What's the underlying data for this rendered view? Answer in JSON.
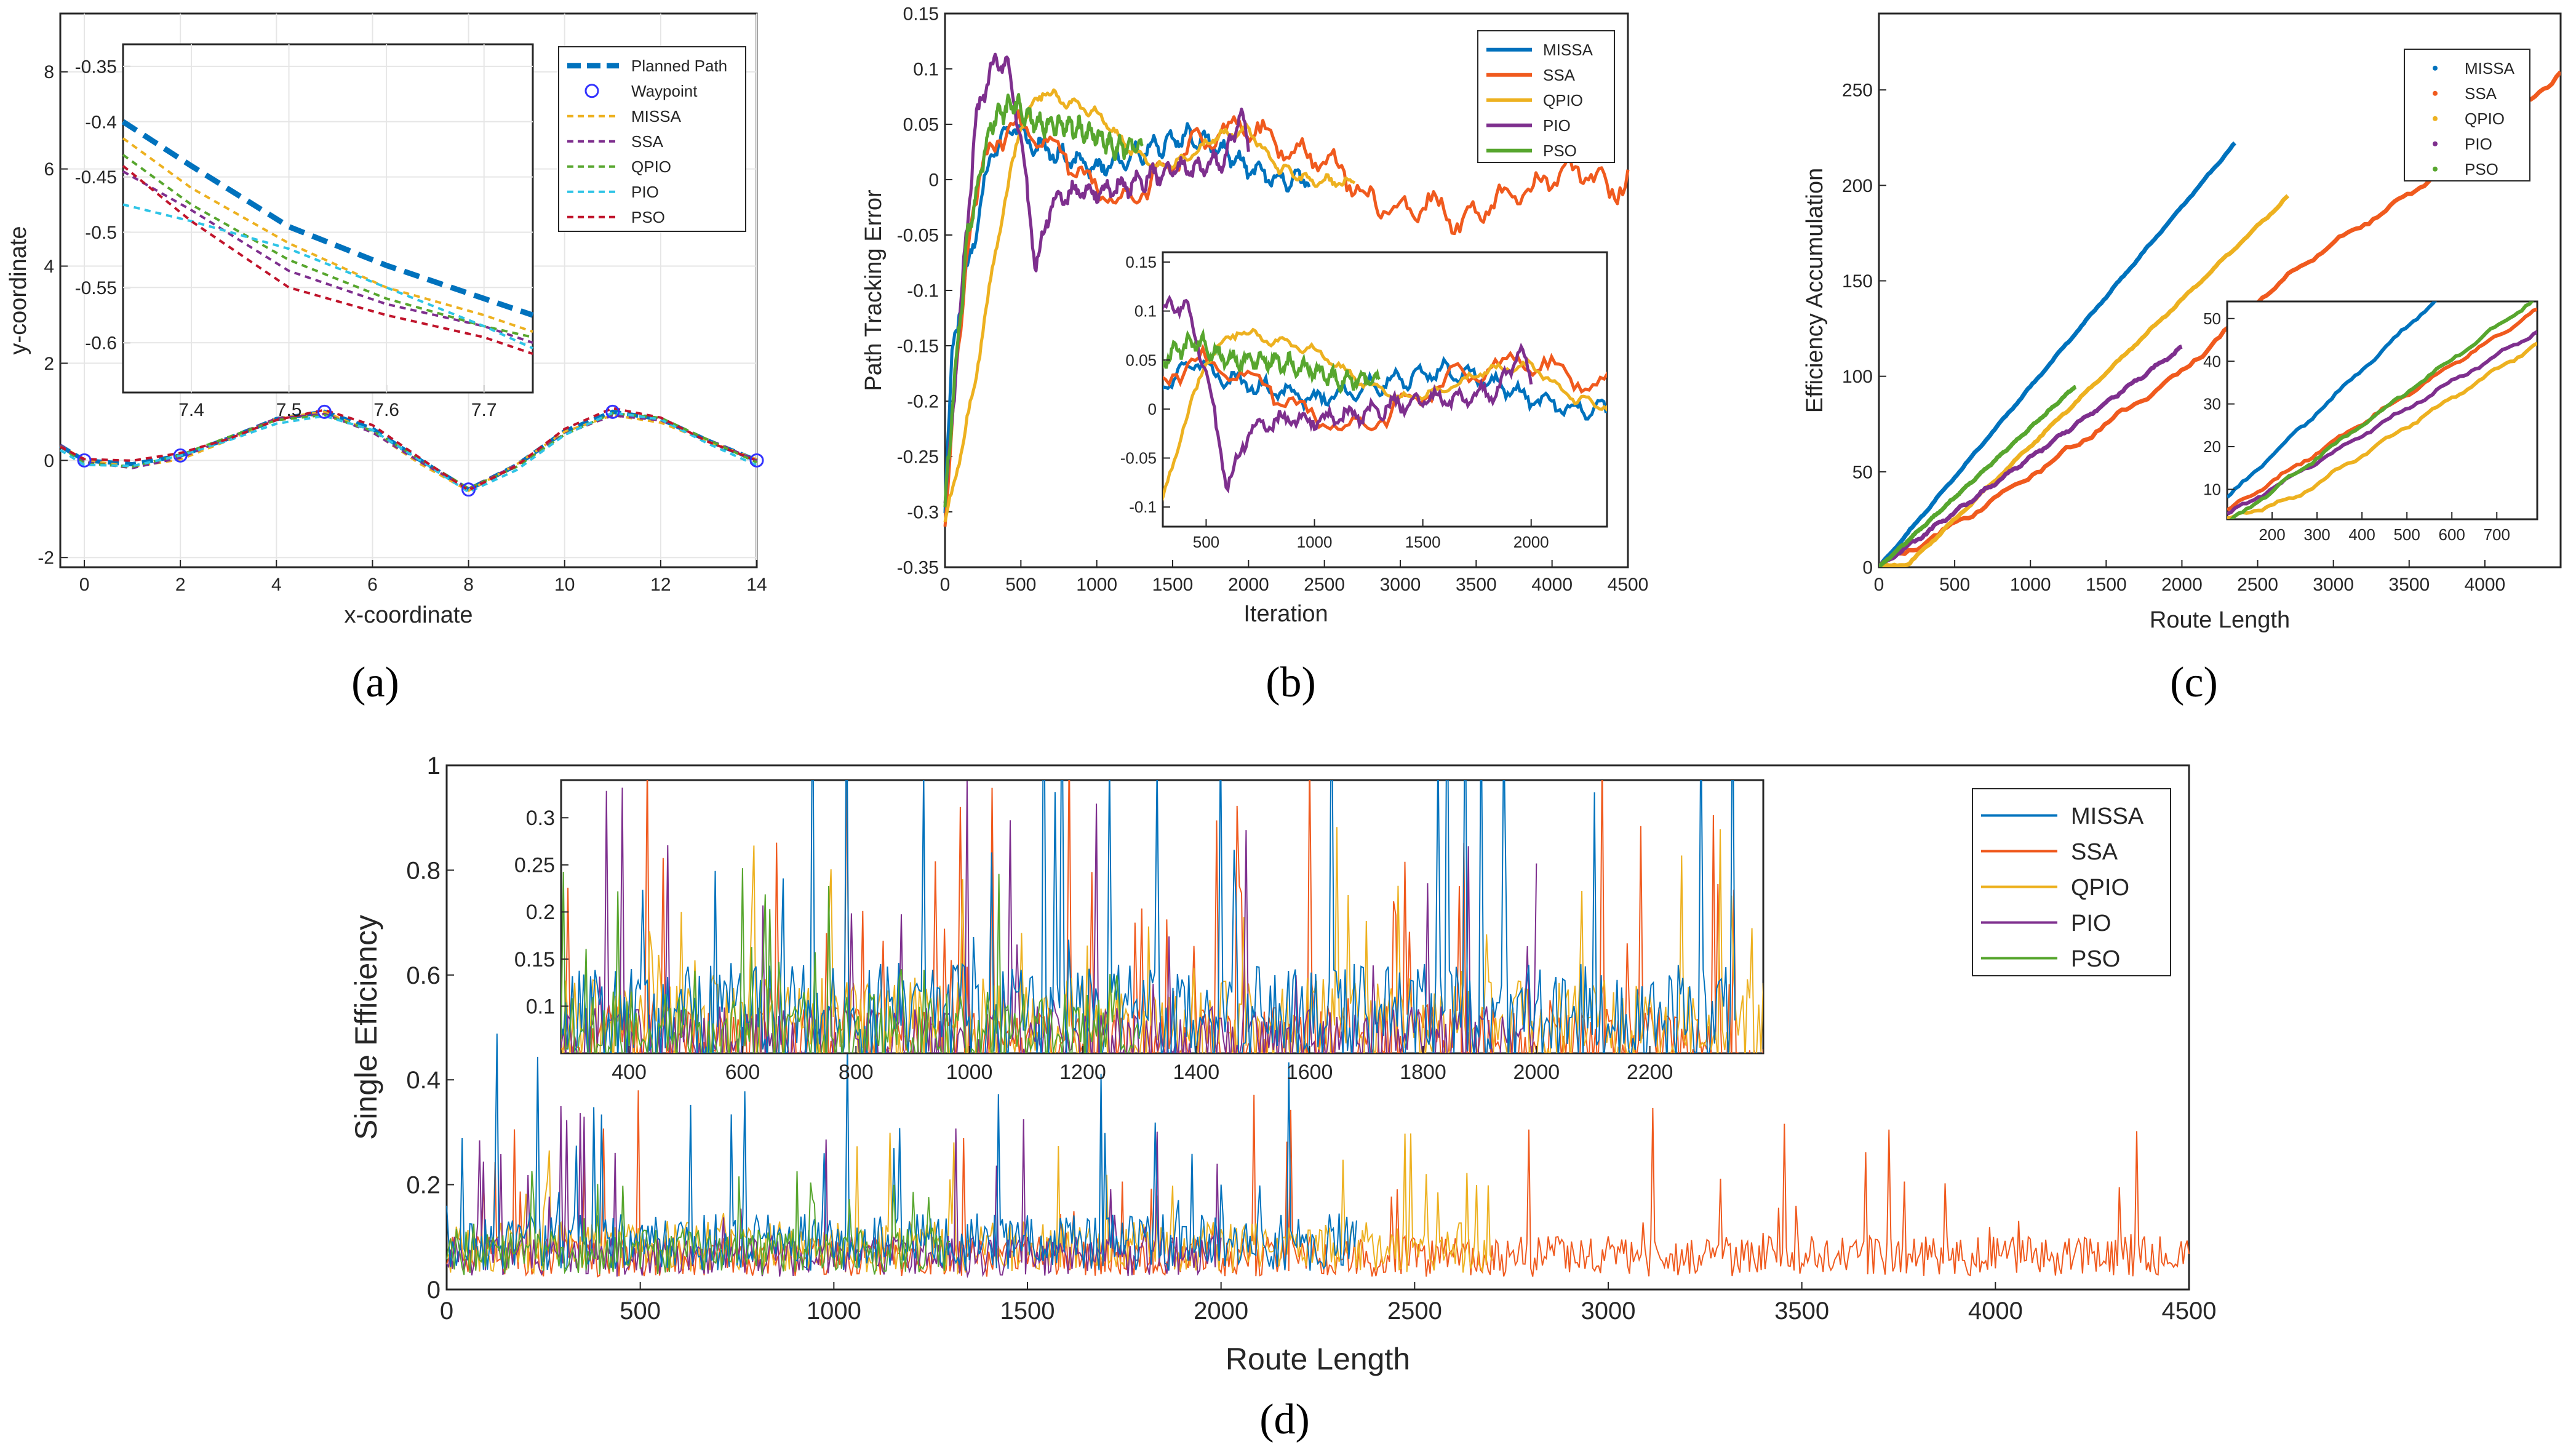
{
  "colors": {
    "MISSA": "#0072BD",
    "SSA": "#F05A1E",
    "QPIO": "#EDB120",
    "PIO": "#7E2F8E",
    "PSO": "#57A62E",
    "planned": "#0072BD",
    "waypoint": "#3333FF",
    "pso_dash": "#C0142B",
    "pio_dash": "#2EC4E6"
  },
  "chart_data": [
    {
      "id": "a",
      "type": "line",
      "caption": "(a)",
      "title": "",
      "xlabel": "x-coordinate",
      "ylabel": "y-coordinate",
      "xlim": [
        -0.5,
        14
      ],
      "ylim": [
        -2.2,
        9.2
      ],
      "xticks": [
        "0",
        "2",
        "4",
        "6",
        "8",
        "10",
        "12",
        "14"
      ],
      "xtick_values": [
        0,
        2,
        4,
        6,
        8,
        10,
        12,
        14
      ],
      "yticks": [
        "-2",
        "0",
        "2",
        "4",
        "6",
        "8"
      ],
      "ytick_values": [
        -2,
        0,
        2,
        4,
        6,
        8
      ],
      "grid": true,
      "legend_position": "top-right",
      "legend": [
        "Planned Path",
        "Waypoint",
        "MISSA",
        "SSA",
        "QPIO",
        "PIO",
        "PSO"
      ],
      "waypoints": {
        "x": [
          0,
          2,
          5,
          8,
          11,
          14
        ],
        "y": [
          0,
          0.1,
          1,
          -0.6,
          1,
          0
        ]
      },
      "path": {
        "x": [
          -0.5,
          0,
          1,
          2,
          3,
          4,
          5,
          6,
          7,
          8,
          9,
          10,
          11,
          12,
          13,
          14
        ],
        "y": [
          0.3,
          0,
          -0.08,
          0.1,
          0.45,
          0.85,
          1,
          0.65,
          0,
          -0.6,
          -0.1,
          0.6,
          1,
          0.85,
          0.4,
          0
        ]
      },
      "inset": {
        "xlim": [
          7.33,
          7.75
        ],
        "ylim": [
          -0.645,
          -0.33
        ],
        "xticks": [
          "7.4",
          "7.5",
          "7.6",
          "7.7"
        ],
        "xtick_values": [
          7.4,
          7.5,
          7.6,
          7.7
        ],
        "yticks": [
          "-0.35",
          "-0.4",
          "-0.45",
          "-0.5",
          "-0.55",
          "-0.6"
        ],
        "ytick_values": [
          -0.35,
          -0.4,
          -0.45,
          -0.5,
          -0.55,
          -0.6
        ],
        "x": [
          7.33,
          7.4,
          7.5,
          7.6,
          7.7,
          7.75
        ],
        "series": [
          {
            "name": "Planned Path",
            "y": [
              -0.4,
              -0.44,
              -0.495,
              -0.53,
              -0.56,
              -0.575
            ]
          },
          {
            "name": "MISSA",
            "y": [
              -0.415,
              -0.46,
              -0.51,
              -0.55,
              -0.575,
              -0.59
            ]
          },
          {
            "name": "SSA",
            "y": [
              -0.445,
              -0.48,
              -0.535,
              -0.565,
              -0.585,
              -0.6
            ]
          },
          {
            "name": "QPIO",
            "y": [
              -0.43,
              -0.475,
              -0.525,
              -0.56,
              -0.585,
              -0.595
            ]
          },
          {
            "name": "PIO",
            "y": [
              -0.475,
              -0.49,
              -0.515,
              -0.55,
              -0.585,
              -0.605
            ]
          },
          {
            "name": "PSO",
            "y": [
              -0.44,
              -0.49,
              -0.55,
              -0.575,
              -0.595,
              -0.61
            ]
          }
        ]
      }
    },
    {
      "id": "b",
      "type": "line",
      "caption": "(b)",
      "title": "",
      "xlabel": "Iteration",
      "ylabel": "Path Tracking Error",
      "xlim": [
        0,
        4500
      ],
      "ylim": [
        -0.35,
        0.15
      ],
      "xticks": [
        "0",
        "500",
        "1000",
        "1500",
        "2000",
        "2500",
        "3000",
        "3500",
        "4000",
        "4500"
      ],
      "xtick_values": [
        0,
        500,
        1000,
        1500,
        2000,
        2500,
        3000,
        3500,
        4000,
        4500
      ],
      "yticks": [
        "-0.35",
        "-0.3",
        "-0.25",
        "-0.2",
        "-0.15",
        "-0.1",
        "-0.05",
        "0",
        "0.05",
        "0.1",
        "0.15"
      ],
      "ytick_values": [
        -0.35,
        -0.3,
        -0.25,
        -0.2,
        -0.15,
        -0.1,
        -0.05,
        0,
        0.05,
        0.1,
        0.15
      ],
      "grid": false,
      "legend_position": "top-right",
      "legend": [
        "MISSA",
        "SSA",
        "QPIO",
        "PIO",
        "PSO"
      ],
      "series": [
        {
          "name": "MISSA",
          "x": [
            0,
            50,
            150,
            300,
            450,
            600,
            800,
            1000,
            1200,
            1400,
            1600,
            1800,
            2000,
            2200,
            2400
          ],
          "y": [
            -0.3,
            -0.15,
            -0.08,
            0.02,
            0.05,
            0.03,
            0.02,
            0.01,
            0.02,
            0.03,
            0.04,
            0.03,
            0.01,
            0.0,
            0.0
          ]
        },
        {
          "name": "SSA",
          "x": [
            0,
            50,
            150,
            300,
            450,
            600,
            800,
            1000,
            1200,
            1400,
            1600,
            1800,
            2000,
            2200,
            2400,
            2600,
            2800,
            3000,
            3200,
            3400,
            3600,
            3800,
            4000,
            4200,
            4400,
            4500
          ],
          "y": [
            -0.32,
            -0.22,
            -0.05,
            0.03,
            0.05,
            0.04,
            0.02,
            -0.01,
            -0.02,
            0.0,
            0.03,
            0.04,
            0.05,
            0.03,
            0.02,
            0.01,
            -0.02,
            -0.03,
            -0.02,
            -0.04,
            -0.02,
            -0.01,
            0.0,
            0.01,
            -0.01,
            0.0
          ]
        },
        {
          "name": "QPIO",
          "x": [
            0,
            100,
            200,
            350,
            500,
            650,
            800,
            1000,
            1200,
            1400,
            1600,
            1800,
            2000,
            2200,
            2400,
            2700
          ],
          "y": [
            -0.31,
            -0.25,
            -0.18,
            -0.05,
            0.05,
            0.08,
            0.07,
            0.06,
            0.03,
            0.01,
            0.02,
            0.04,
            0.045,
            0.01,
            0.0,
            -0.003
          ]
        },
        {
          "name": "PIO",
          "x": [
            0,
            100,
            200,
            300,
            400,
            500,
            600,
            700,
            900,
            1100,
            1300,
            1500,
            1700,
            1850,
            1950,
            2000
          ],
          "y": [
            -0.3,
            -0.12,
            0.05,
            0.1,
            0.11,
            0.04,
            -0.08,
            -0.02,
            -0.01,
            -0.01,
            0.0,
            0.01,
            0.01,
            0.02,
            0.06,
            0.03
          ]
        },
        {
          "name": "PSO",
          "x": [
            0,
            50,
            150,
            300,
            450,
            600,
            800,
            1000,
            1100,
            1200,
            1300
          ],
          "y": [
            -0.3,
            -0.2,
            -0.05,
            0.05,
            0.07,
            0.05,
            0.05,
            0.04,
            0.03,
            0.03,
            0.03
          ]
        }
      ],
      "inset": {
        "xlim": [
          300,
          2350
        ],
        "ylim": [
          -0.12,
          0.16
        ],
        "xticks": [
          "500",
          "1000",
          "1500",
          "2000"
        ],
        "xtick_values": [
          500,
          1000,
          1500,
          2000
        ],
        "yticks": [
          "-0.1",
          "-0.05",
          "0",
          "0.05",
          "0.1",
          "0.15"
        ],
        "ytick_values": [
          -0.1,
          -0.05,
          0,
          0.05,
          0.1,
          0.15
        ]
      }
    },
    {
      "id": "c",
      "type": "line",
      "caption": "(c)",
      "title": "",
      "xlabel": "Route Length",
      "ylabel": "Efficiency Accumulation",
      "xlim": [
        0,
        4500
      ],
      "ylim": [
        0,
        290
      ],
      "xticks": [
        "0",
        "500",
        "1000",
        "1500",
        "2000",
        "2500",
        "3000",
        "3500",
        "4000"
      ],
      "xtick_values": [
        0,
        500,
        1000,
        1500,
        2000,
        2500,
        3000,
        3500,
        4000
      ],
      "yticks": [
        "0",
        "50",
        "100",
        "150",
        "200",
        "250"
      ],
      "ytick_values": [
        0,
        50,
        100,
        150,
        200,
        250
      ],
      "grid": false,
      "legend_position": "top-right",
      "legend": [
        "MISSA",
        "SSA",
        "QPIO",
        "PIO",
        "PSO"
      ],
      "series": [
        {
          "name": "MISSA",
          "x": [
            0,
            2350
          ],
          "y": [
            0,
            222
          ]
        },
        {
          "name": "SSA",
          "x": [
            0,
            500,
            1000,
            1500,
            2000,
            2500,
            3000,
            3500,
            4000,
            4500
          ],
          "y": [
            0,
            22,
            48,
            75,
            102,
            140,
            170,
            195,
            228,
            258
          ]
        },
        {
          "name": "QPIO",
          "x": [
            0,
            200,
            2700
          ],
          "y": [
            0,
            2,
            194
          ]
        },
        {
          "name": "PIO",
          "x": [
            0,
            2000
          ],
          "y": [
            0,
            115
          ]
        },
        {
          "name": "PSO",
          "x": [
            0,
            1300
          ],
          "y": [
            0,
            95
          ]
        }
      ],
      "inset": {
        "xlim": [
          100,
          790
        ],
        "ylim": [
          3,
          54
        ],
        "xticks": [
          "200",
          "300",
          "400",
          "500",
          "600",
          "700"
        ],
        "xtick_values": [
          200,
          300,
          400,
          500,
          600,
          700
        ],
        "yticks": [
          "10",
          "20",
          "30",
          "40",
          "50"
        ],
        "ytick_values": [
          10,
          20,
          30,
          40,
          50
        ]
      }
    },
    {
      "id": "d",
      "type": "line",
      "caption": "(d)",
      "title": "",
      "xlabel": "Route Length",
      "ylabel": "Single Efficiency",
      "xlim": [
        0,
        4500
      ],
      "ylim": [
        0,
        1
      ],
      "xticks": [
        "0",
        "500",
        "1000",
        "1500",
        "2000",
        "2500",
        "3000",
        "3500",
        "4000",
        "4500"
      ],
      "xtick_values": [
        0,
        500,
        1000,
        1500,
        2000,
        2500,
        3000,
        3500,
        4000,
        4500
      ],
      "yticks": [
        "0",
        "0.2",
        "0.4",
        "0.6",
        "0.8",
        "1"
      ],
      "ytick_values": [
        0,
        0.2,
        0.4,
        0.6,
        0.8,
        1
      ],
      "grid": false,
      "legend_position": "top-right",
      "legend": [
        "MISSA",
        "SSA",
        "QPIO",
        "PIO",
        "PSO"
      ],
      "series": [
        {
          "name": "MISSA",
          "range": [
            0,
            2350
          ],
          "mean": 0.1,
          "max": 0.5
        },
        {
          "name": "SSA",
          "range": [
            0,
            4500
          ],
          "mean": 0.07,
          "max": 0.38
        },
        {
          "name": "QPIO",
          "range": [
            0,
            2700
          ],
          "mean": 0.09,
          "max": 0.3
        },
        {
          "name": "PIO",
          "range": [
            0,
            2000
          ],
          "mean": 0.07,
          "max": 0.35
        },
        {
          "name": "PSO",
          "range": [
            0,
            1300
          ],
          "mean": 0.08,
          "max": 0.25
        }
      ],
      "inset": {
        "xlim": [
          280,
          2400
        ],
        "ylim": [
          0.05,
          0.34
        ],
        "xticks": [
          "400",
          "600",
          "800",
          "1000",
          "1200",
          "1400",
          "1600",
          "1800",
          "2000",
          "2200"
        ],
        "xtick_values": [
          400,
          600,
          800,
          1000,
          1200,
          1400,
          1600,
          1800,
          2000,
          2200
        ],
        "yticks": [
          "0.1",
          "0.15",
          "0.2",
          "0.25",
          "0.3"
        ],
        "ytick_values": [
          0.1,
          0.15,
          0.2,
          0.25,
          0.3
        ]
      }
    }
  ]
}
